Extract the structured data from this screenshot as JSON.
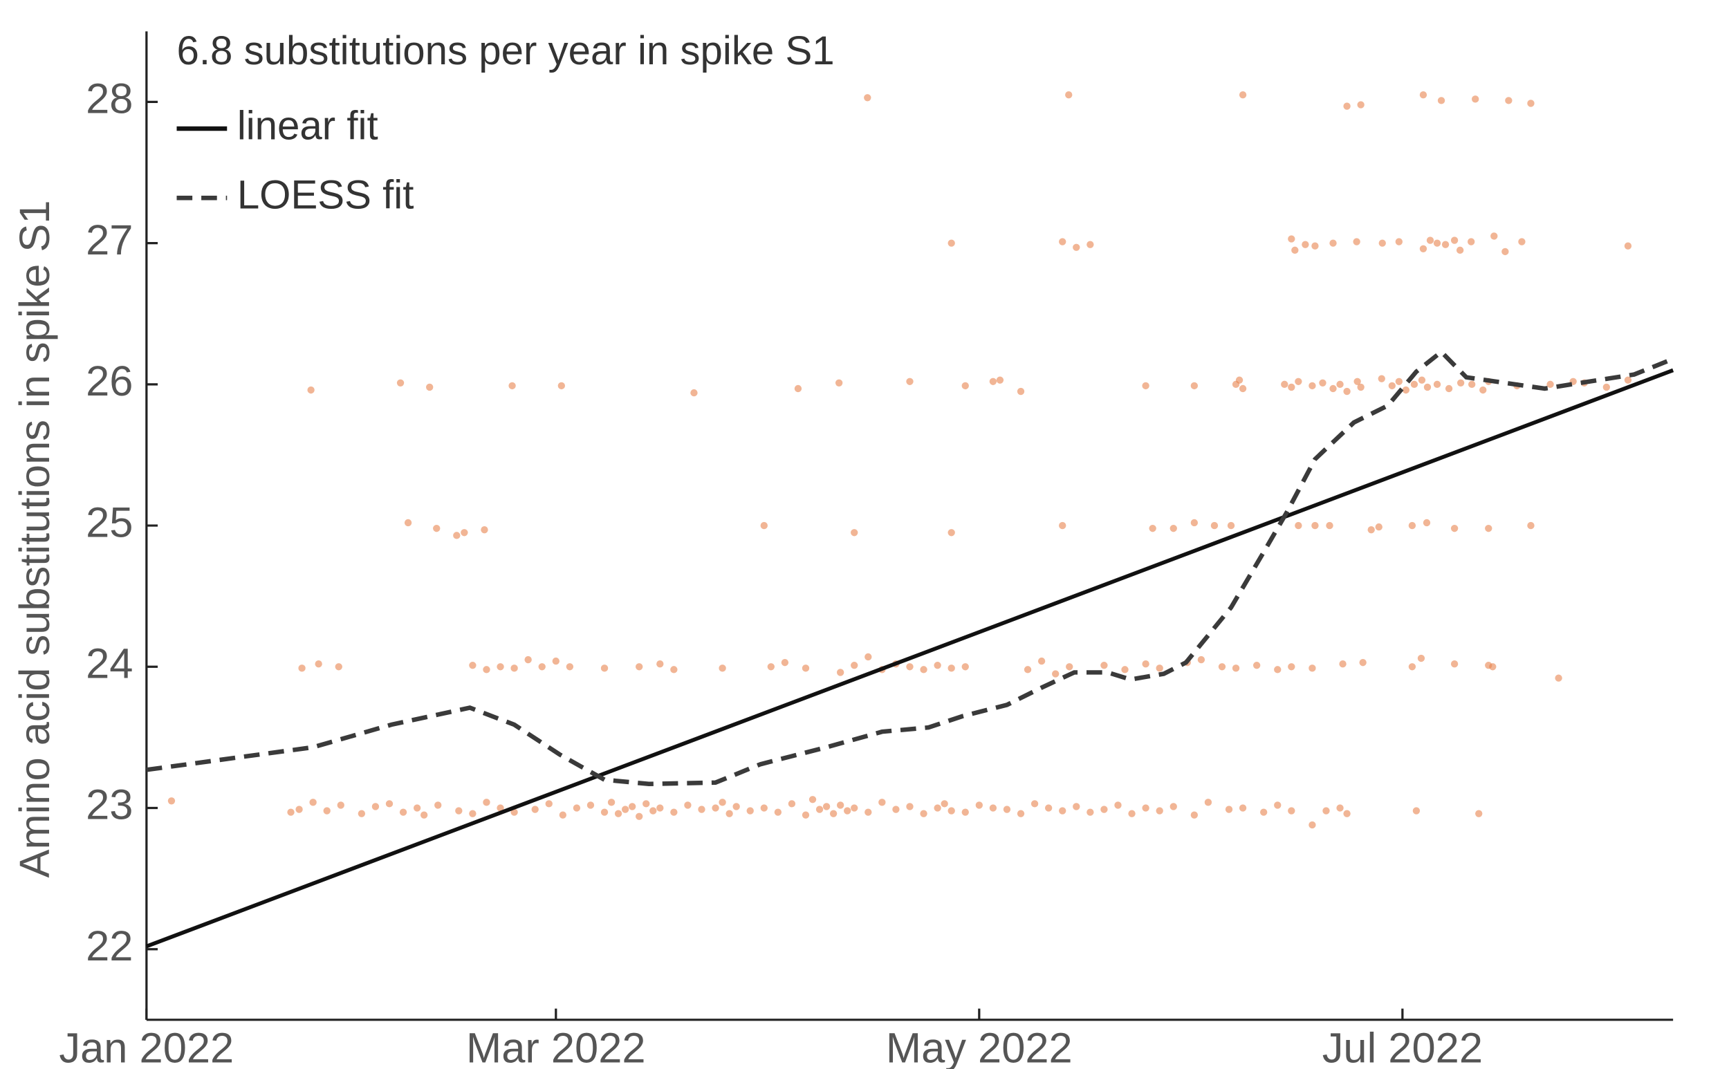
{
  "chart_data": {
    "type": "scatter",
    "annotation": "6.8 substitutions per year in spike S1",
    "y_label": "Amino acid substitutions in spike S1",
    "xlim": [
      0,
      220
    ],
    "xticks": [
      {
        "value": 0,
        "label": "Jan 2022"
      },
      {
        "value": 59,
        "label": "Mar 2022"
      },
      {
        "value": 120,
        "label": "May 2022"
      },
      {
        "value": 181,
        "label": "Jul 2022"
      }
    ],
    "ylim": [
      21.5,
      28.5
    ],
    "yticks": [
      22,
      23,
      24,
      25,
      26,
      27,
      28
    ],
    "point_color": "#e8834f",
    "points": [
      [
        3.6,
        23.05
      ],
      [
        20.8,
        22.97
      ],
      [
        22,
        22.99
      ],
      [
        24,
        23.04
      ],
      [
        26,
        22.98
      ],
      [
        28,
        23.02
      ],
      [
        31,
        22.96
      ],
      [
        33,
        23.01
      ],
      [
        35,
        23.03
      ],
      [
        37,
        22.97
      ],
      [
        39,
        23.0
      ],
      [
        40,
        22.95
      ],
      [
        42,
        23.02
      ],
      [
        45,
        22.98
      ],
      [
        47,
        22.96
      ],
      [
        49,
        23.04
      ],
      [
        51,
        23.0
      ],
      [
        53,
        22.97
      ],
      [
        56,
        22.99
      ],
      [
        58,
        23.03
      ],
      [
        60,
        22.95
      ],
      [
        62,
        23.0
      ],
      [
        64,
        23.02
      ],
      [
        66,
        22.97
      ],
      [
        67,
        23.04
      ],
      [
        68,
        22.96
      ],
      [
        69,
        22.99
      ],
      [
        70,
        23.01
      ],
      [
        71,
        22.94
      ],
      [
        72,
        23.03
      ],
      [
        73,
        22.98
      ],
      [
        74,
        23.0
      ],
      [
        76,
        22.97
      ],
      [
        78,
        23.02
      ],
      [
        80,
        22.99
      ],
      [
        82,
        23.0
      ],
      [
        83,
        23.04
      ],
      [
        84,
        22.96
      ],
      [
        85,
        23.01
      ],
      [
        87,
        22.98
      ],
      [
        89,
        23.0
      ],
      [
        91,
        22.97
      ],
      [
        93,
        23.03
      ],
      [
        95,
        22.95
      ],
      [
        96,
        23.06
      ],
      [
        97,
        22.99
      ],
      [
        98,
        23.01
      ],
      [
        99,
        22.96
      ],
      [
        100,
        23.02
      ],
      [
        101,
        22.98
      ],
      [
        102,
        23.0
      ],
      [
        104,
        22.97
      ],
      [
        106,
        23.04
      ],
      [
        108,
        22.99
      ],
      [
        110,
        23.01
      ],
      [
        112,
        22.96
      ],
      [
        114,
        23.0
      ],
      [
        115,
        23.03
      ],
      [
        116,
        22.98
      ],
      [
        118,
        22.97
      ],
      [
        120,
        23.02
      ],
      [
        122,
        23.0
      ],
      [
        124,
        22.99
      ],
      [
        126,
        22.96
      ],
      [
        128,
        23.03
      ],
      [
        130,
        23.0
      ],
      [
        132,
        22.98
      ],
      [
        134,
        23.01
      ],
      [
        136,
        22.97
      ],
      [
        138,
        22.99
      ],
      [
        140,
        23.02
      ],
      [
        142,
        22.96
      ],
      [
        144,
        23.0
      ],
      [
        146,
        22.98
      ],
      [
        148,
        23.01
      ],
      [
        151,
        22.95
      ],
      [
        153,
        23.04
      ],
      [
        156,
        22.99
      ],
      [
        158,
        23.0
      ],
      [
        161,
        22.97
      ],
      [
        163,
        23.02
      ],
      [
        165,
        22.98
      ],
      [
        168,
        22.88
      ],
      [
        170,
        22.98
      ],
      [
        172,
        23.0
      ],
      [
        173,
        22.96
      ],
      [
        183,
        22.98
      ],
      [
        192,
        22.96
      ],
      [
        22.4,
        23.99
      ],
      [
        24.8,
        24.02
      ],
      [
        27.7,
        24.0
      ],
      [
        47,
        24.01
      ],
      [
        49,
        23.98
      ],
      [
        51,
        24.0
      ],
      [
        53,
        23.99
      ],
      [
        55,
        24.05
      ],
      [
        57,
        24.0
      ],
      [
        59,
        24.04
      ],
      [
        61,
        24.0
      ],
      [
        66,
        23.99
      ],
      [
        71,
        24.0
      ],
      [
        74,
        24.02
      ],
      [
        76,
        23.98
      ],
      [
        83,
        23.99
      ],
      [
        90,
        24.0
      ],
      [
        92,
        24.03
      ],
      [
        95,
        23.99
      ],
      [
        100,
        23.96
      ],
      [
        102,
        24.01
      ],
      [
        104,
        24.07
      ],
      [
        106,
        23.98
      ],
      [
        108,
        24.02
      ],
      [
        110,
        24.0
      ],
      [
        112,
        23.98
      ],
      [
        114,
        24.01
      ],
      [
        116,
        23.99
      ],
      [
        118,
        24.0
      ],
      [
        127,
        23.98
      ],
      [
        129,
        24.04
      ],
      [
        131,
        23.95
      ],
      [
        133,
        24.0
      ],
      [
        138,
        24.01
      ],
      [
        141,
        23.98
      ],
      [
        144,
        24.02
      ],
      [
        146,
        23.99
      ],
      [
        150,
        24.03
      ],
      [
        152,
        24.05
      ],
      [
        155,
        24.0
      ],
      [
        157,
        23.99
      ],
      [
        160,
        24.01
      ],
      [
        163,
        23.98
      ],
      [
        165,
        24.0
      ],
      [
        168,
        23.99
      ],
      [
        172.4,
        24.02
      ],
      [
        175.3,
        24.03
      ],
      [
        182.4,
        24.0
      ],
      [
        183.7,
        24.06
      ],
      [
        188.5,
        24.02
      ],
      [
        193.4,
        24.01
      ],
      [
        194,
        24.0
      ],
      [
        203.5,
        23.92
      ],
      [
        37.7,
        25.02
      ],
      [
        41.8,
        24.98
      ],
      [
        44.7,
        24.93
      ],
      [
        45.8,
        24.95
      ],
      [
        48.7,
        24.97
      ],
      [
        89,
        25.0
      ],
      [
        102,
        24.95
      ],
      [
        116,
        24.95
      ],
      [
        132,
        25.0
      ],
      [
        145,
        24.98
      ],
      [
        148,
        24.98
      ],
      [
        151,
        25.02
      ],
      [
        153.9,
        25.0
      ],
      [
        156.3,
        25.0
      ],
      [
        166,
        25.0
      ],
      [
        168.4,
        25.0
      ],
      [
        170.5,
        25.0
      ],
      [
        176.5,
        24.97
      ],
      [
        177.6,
        24.99
      ],
      [
        182.4,
        25.0
      ],
      [
        184.5,
        25.02
      ],
      [
        188.5,
        24.98
      ],
      [
        193.4,
        24.98
      ],
      [
        199.5,
        25.0
      ],
      [
        23.7,
        25.96
      ],
      [
        36.6,
        26.01
      ],
      [
        40.8,
        25.98
      ],
      [
        52.7,
        25.99
      ],
      [
        59.8,
        25.99
      ],
      [
        78.9,
        25.94
      ],
      [
        93.9,
        25.97
      ],
      [
        99.8,
        26.01
      ],
      [
        110,
        26.02
      ],
      [
        118,
        25.99
      ],
      [
        122,
        26.02
      ],
      [
        123,
        26.03
      ],
      [
        126,
        25.95
      ],
      [
        144,
        25.99
      ],
      [
        151,
        25.99
      ],
      [
        157,
        26.0
      ],
      [
        157.5,
        26.03
      ],
      [
        158,
        25.97
      ],
      [
        164,
        26.0
      ],
      [
        165,
        25.98
      ],
      [
        166,
        26.02
      ],
      [
        168,
        25.99
      ],
      [
        169.5,
        26.01
      ],
      [
        171,
        25.97
      ],
      [
        172,
        26.0
      ],
      [
        173,
        25.95
      ],
      [
        174.5,
        26.02
      ],
      [
        175,
        25.98
      ],
      [
        178,
        26.04
      ],
      [
        179.5,
        25.99
      ],
      [
        180.5,
        26.02
      ],
      [
        181.5,
        25.96
      ],
      [
        182.7,
        26.0
      ],
      [
        183.8,
        26.03
      ],
      [
        184.6,
        25.98
      ],
      [
        186,
        26.0
      ],
      [
        187.7,
        25.97
      ],
      [
        189.4,
        26.01
      ],
      [
        191,
        26.0
      ],
      [
        192.6,
        25.96
      ],
      [
        193.4,
        26.02
      ],
      [
        197.5,
        25.99
      ],
      [
        202.3,
        26.0
      ],
      [
        205.6,
        26.02
      ],
      [
        207.2,
        26.01
      ],
      [
        210.4,
        25.98
      ],
      [
        213.5,
        26.03
      ],
      [
        116,
        27.0
      ],
      [
        132,
        27.01
      ],
      [
        134,
        26.97
      ],
      [
        136,
        26.99
      ],
      [
        165,
        27.03
      ],
      [
        165.5,
        26.95
      ],
      [
        167,
        26.99
      ],
      [
        168.4,
        26.98
      ],
      [
        171,
        27.0
      ],
      [
        174.4,
        27.01
      ],
      [
        178.1,
        27.0
      ],
      [
        180.5,
        27.01
      ],
      [
        184,
        26.96
      ],
      [
        185,
        27.02
      ],
      [
        186,
        27.0
      ],
      [
        187.2,
        26.99
      ],
      [
        188.5,
        27.02
      ],
      [
        189.3,
        26.95
      ],
      [
        190.9,
        27.01
      ],
      [
        194.2,
        27.05
      ],
      [
        195.8,
        26.94
      ],
      [
        198.2,
        27.01
      ],
      [
        213.5,
        26.98
      ],
      [
        103.9,
        28.03
      ],
      [
        132.9,
        28.05
      ],
      [
        158,
        28.05
      ],
      [
        173,
        27.97
      ],
      [
        175,
        27.98
      ],
      [
        184,
        28.05
      ],
      [
        186.6,
        28.01
      ],
      [
        191.5,
        28.02
      ],
      [
        196.3,
        28.01
      ],
      [
        199.5,
        27.99
      ]
    ],
    "series": [
      {
        "name": "linear fit",
        "color": "#111111",
        "dashed": false,
        "x": [
          0,
          220
        ],
        "values": [
          22.02,
          26.1
        ]
      },
      {
        "name": "LOESS fit",
        "color": "#3a3a3a",
        "dashed": true,
        "x": [
          0,
          24,
          35.3,
          46.6,
          53,
          59.5,
          66,
          72.4,
          82,
          88.5,
          98,
          106,
          112.7,
          117.6,
          124,
          128.9,
          133.7,
          138.5,
          141.8,
          146.6,
          149.8,
          156.3,
          161.1,
          164.4,
          168.4,
          174,
          178.9,
          183,
          186.6,
          190.2,
          201.5,
          207.9,
          214.4,
          220
        ],
        "values": [
          23.27,
          23.43,
          23.59,
          23.71,
          23.59,
          23.38,
          23.2,
          23.17,
          23.18,
          23.31,
          23.43,
          23.54,
          23.57,
          23.65,
          23.73,
          23.85,
          23.96,
          23.96,
          23.91,
          23.95,
          24.03,
          24.42,
          24.82,
          25.1,
          25.47,
          25.73,
          25.85,
          26.09,
          26.23,
          26.05,
          25.97,
          26.02,
          26.07,
          26.18
        ]
      }
    ]
  }
}
